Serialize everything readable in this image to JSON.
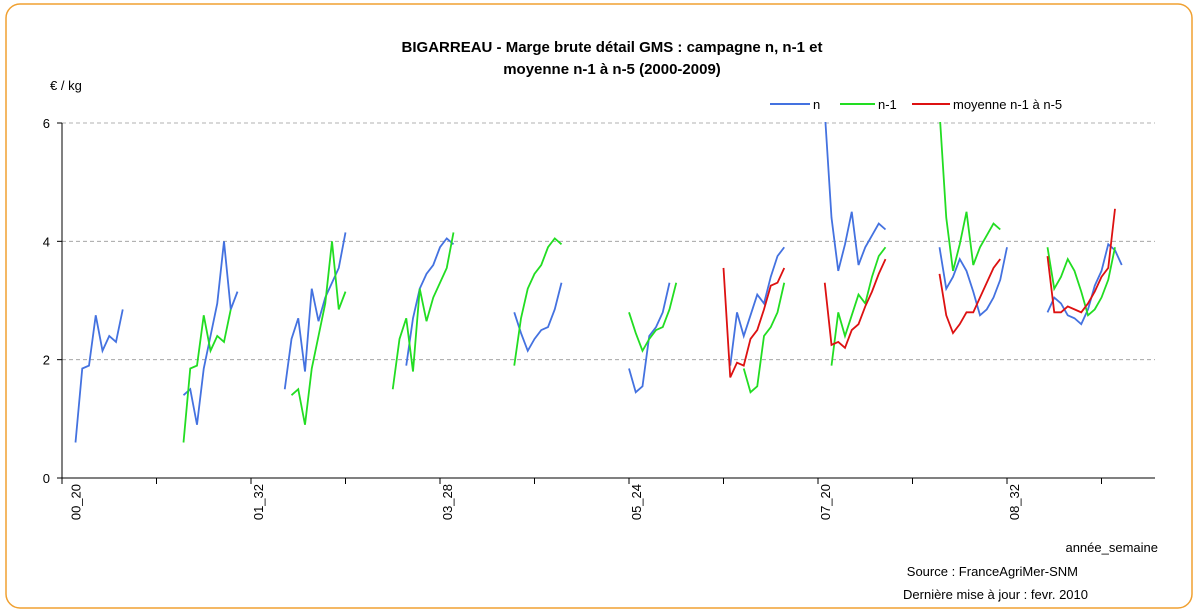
{
  "chart_data": {
    "type": "line",
    "title": [
      "BIGARREAU - Marge brute détail GMS : campagne n, n-1 et",
      "moyenne n-1 à n-5 (2000-2009)"
    ],
    "y_label": "€ / kg",
    "x_label": "année_semaine",
    "source": "Source : FranceAgriMer-SNM",
    "update_note": "Dernière mise à jour : fevr. 2010",
    "ylim": [
      0,
      6
    ],
    "yticks": [
      0,
      2,
      4,
      6
    ],
    "grid": true,
    "legend": "top-right",
    "categories": [
      null,
      null,
      "00_20",
      null,
      null,
      null,
      null,
      null,
      null,
      null,
      null,
      null,
      null,
      null,
      null,
      null,
      null,
      null,
      null,
      null,
      null,
      null,
      null,
      null,
      null,
      null,
      null,
      null,
      null,
      "01_32",
      null,
      null,
      null,
      null,
      null,
      null,
      null,
      null,
      null,
      null,
      null,
      null,
      null,
      null,
      null,
      null,
      null,
      null,
      null,
      null,
      null,
      null,
      null,
      null,
      null,
      null,
      null,
      "03_28",
      null,
      null,
      null,
      null,
      null,
      null,
      null,
      null,
      null,
      null,
      null,
      null,
      null,
      null,
      null,
      null,
      null,
      null,
      null,
      null,
      null,
      null,
      null,
      null,
      null,
      null,
      null,
      "05_24",
      null,
      null,
      null,
      null,
      null,
      null,
      null,
      null,
      null,
      null,
      null,
      null,
      null,
      null,
      null,
      null,
      null,
      null,
      null,
      null,
      null,
      null,
      null,
      null,
      null,
      null,
      null,
      "07_20",
      null,
      null,
      null,
      null,
      null,
      null,
      null,
      null,
      null,
      null,
      null,
      null,
      null,
      null,
      null,
      null,
      null,
      null,
      null,
      null,
      null,
      null,
      null,
      null,
      null,
      null,
      null,
      "08_32",
      null,
      null,
      null,
      null,
      null,
      null,
      null,
      null,
      null,
      null,
      null,
      null,
      null,
      null,
      null,
      null,
      null,
      null
    ],
    "series": [
      {
        "name": "n",
        "color": "#4472e0",
        "values": [
          null,
          null,
          0.6,
          1.85,
          1.9,
          2.75,
          2.15,
          2.4,
          2.3,
          2.85,
          null,
          null,
          null,
          null,
          null,
          null,
          null,
          null,
          1.4,
          1.5,
          0.9,
          1.85,
          2.4,
          2.95,
          4.0,
          2.85,
          3.15,
          null,
          null,
          null,
          null,
          null,
          null,
          1.5,
          2.35,
          2.7,
          1.8,
          3.2,
          2.65,
          3.05,
          3.3,
          3.55,
          4.15,
          null,
          null,
          null,
          null,
          null,
          null,
          null,
          null,
          1.9,
          2.7,
          3.2,
          3.45,
          3.6,
          3.9,
          4.05,
          3.95,
          null,
          null,
          null,
          null,
          null,
          null,
          null,
          null,
          2.8,
          2.45,
          2.15,
          2.35,
          2.5,
          2.55,
          2.85,
          3.3,
          null,
          null,
          null,
          null,
          null,
          null,
          null,
          null,
          null,
          1.85,
          1.45,
          1.55,
          2.4,
          2.55,
          2.8,
          3.3,
          null,
          null,
          null,
          null,
          null,
          null,
          null,
          null,
          1.9,
          2.8,
          2.4,
          2.75,
          3.1,
          2.95,
          3.4,
          3.75,
          3.9,
          null,
          null,
          null,
          null,
          null,
          6.2,
          4.4,
          3.5,
          3.95,
          4.5,
          3.6,
          3.9,
          4.1,
          4.3,
          4.2,
          null,
          null,
          null,
          null,
          null,
          null,
          null,
          3.9,
          3.2,
          3.4,
          3.7,
          3.5,
          3.15,
          2.75,
          2.85,
          3.05,
          3.35,
          3.9,
          null,
          null,
          null,
          null,
          null,
          2.8,
          3.05,
          2.95,
          2.75,
          2.7,
          2.6,
          2.85,
          3.25,
          3.5,
          3.95,
          3.85,
          3.6,
          null,
          null
        ]
      },
      {
        "name": "n-1",
        "color": "#22dd22",
        "values": [
          null,
          null,
          null,
          null,
          null,
          null,
          null,
          null,
          null,
          null,
          null,
          null,
          null,
          null,
          null,
          null,
          null,
          null,
          0.6,
          1.85,
          1.9,
          2.75,
          2.15,
          2.4,
          2.3,
          2.85,
          null,
          null,
          null,
          null,
          null,
          null,
          null,
          null,
          1.4,
          1.5,
          0.9,
          1.85,
          2.4,
          2.95,
          4.0,
          2.85,
          3.15,
          null,
          null,
          null,
          null,
          null,
          null,
          1.5,
          2.35,
          2.7,
          1.8,
          3.2,
          2.65,
          3.05,
          3.3,
          3.55,
          4.15,
          null,
          null,
          null,
          null,
          null,
          null,
          null,
          null,
          1.9,
          2.7,
          3.2,
          3.45,
          3.6,
          3.9,
          4.05,
          3.95,
          null,
          null,
          null,
          null,
          null,
          null,
          null,
          null,
          null,
          2.8,
          2.45,
          2.15,
          2.35,
          2.5,
          2.55,
          2.85,
          3.3,
          null,
          null,
          null,
          null,
          null,
          null,
          null,
          null,
          null,
          1.85,
          1.45,
          1.55,
          2.4,
          2.55,
          2.8,
          3.3,
          null,
          null,
          null,
          null,
          null,
          null,
          1.9,
          2.8,
          2.4,
          2.75,
          3.1,
          2.95,
          3.4,
          3.75,
          3.9,
          null,
          null,
          null,
          null,
          null,
          null,
          null,
          6.2,
          4.4,
          3.5,
          3.95,
          4.5,
          3.6,
          3.9,
          4.1,
          4.3,
          4.2,
          null,
          null,
          null,
          null,
          null,
          null,
          3.9,
          3.2,
          3.4,
          3.7,
          3.5,
          3.15,
          2.75,
          2.85,
          3.05,
          3.35,
          3.9,
          null,
          null,
          null
        ]
      },
      {
        "name": "moyenne n-1 à n-5",
        "color": "#dd1111",
        "values": [
          null,
          null,
          null,
          null,
          null,
          null,
          null,
          null,
          null,
          null,
          null,
          null,
          null,
          null,
          null,
          null,
          null,
          null,
          null,
          null,
          null,
          null,
          null,
          null,
          null,
          null,
          null,
          null,
          null,
          null,
          null,
          null,
          null,
          null,
          null,
          null,
          null,
          null,
          null,
          null,
          null,
          null,
          null,
          null,
          null,
          null,
          null,
          null,
          null,
          null,
          null,
          null,
          null,
          null,
          null,
          null,
          null,
          null,
          null,
          null,
          null,
          null,
          null,
          null,
          null,
          null,
          null,
          null,
          null,
          null,
          null,
          null,
          null,
          null,
          null,
          null,
          null,
          null,
          null,
          null,
          null,
          null,
          null,
          null,
          null,
          null,
          null,
          null,
          null,
          null,
          null,
          null,
          null,
          null,
          null,
          null,
          null,
          null,
          3.55,
          1.7,
          1.95,
          1.9,
          2.35,
          2.5,
          2.85,
          3.25,
          3.3,
          3.55,
          null,
          null,
          null,
          null,
          null,
          3.3,
          2.25,
          2.3,
          2.2,
          2.5,
          2.6,
          2.9,
          3.15,
          3.45,
          3.7,
          null,
          null,
          null,
          null,
          null,
          null,
          null,
          3.45,
          2.75,
          2.45,
          2.6,
          2.8,
          2.8,
          3.05,
          3.3,
          3.55,
          3.7,
          null,
          null,
          null,
          null,
          null,
          null,
          3.75,
          2.8,
          2.8,
          2.9,
          2.85,
          2.8,
          2.95,
          3.15,
          3.4,
          3.55,
          4.55,
          null,
          null,
          null
        ]
      }
    ]
  }
}
